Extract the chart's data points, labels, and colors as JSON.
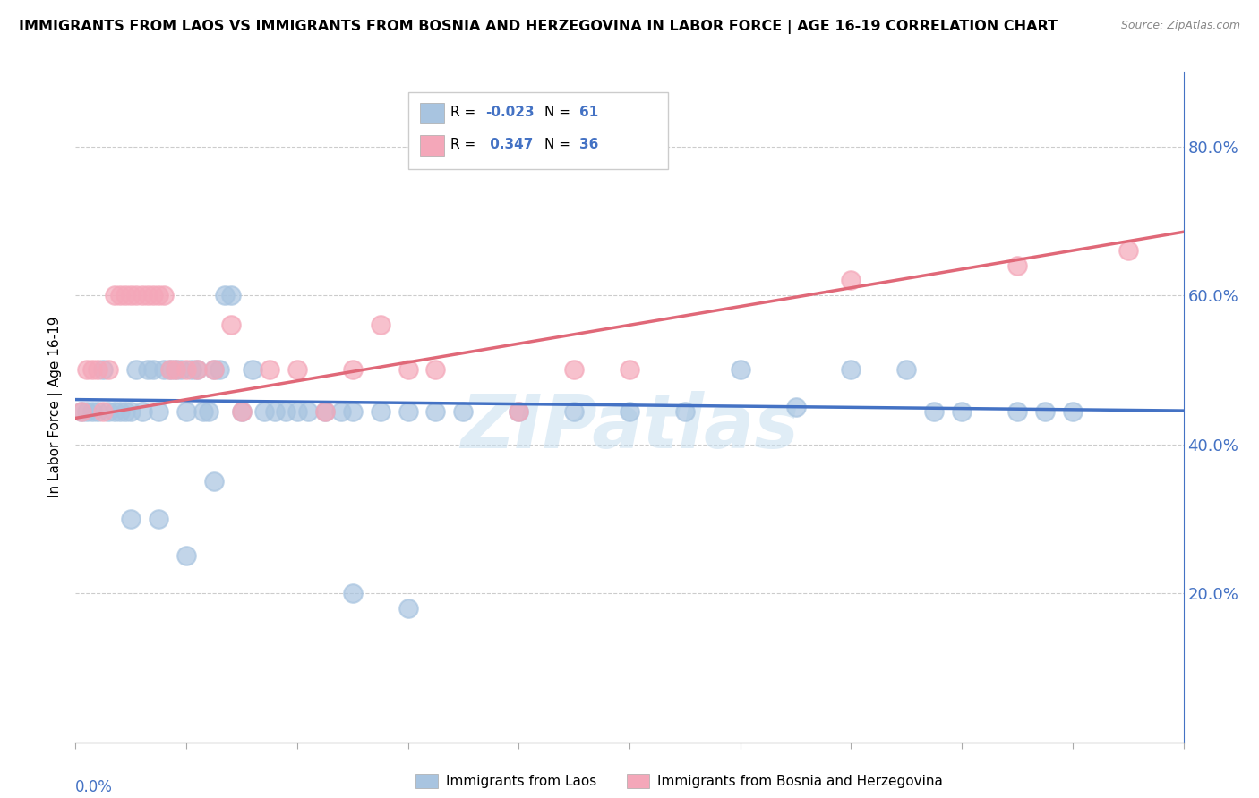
{
  "title": "IMMIGRANTS FROM LAOS VS IMMIGRANTS FROM BOSNIA AND HERZEGOVINA IN LABOR FORCE | AGE 16-19 CORRELATION CHART",
  "source": "Source: ZipAtlas.com",
  "ylabel": "In Labor Force | Age 16-19",
  "yticks": [
    "20.0%",
    "40.0%",
    "60.0%",
    "80.0%"
  ],
  "ytick_values": [
    0.2,
    0.4,
    0.6,
    0.8
  ],
  "blue_color": "#a8c4e0",
  "pink_color": "#f4a7b9",
  "blue_line_color": "#4472c4",
  "pink_line_color": "#e06878",
  "axis_color": "#4472c4",
  "watermark_color": "#c8dff0",
  "scatter_blue": {
    "x": [
      0.001,
      0.002,
      0.003,
      0.004,
      0.005,
      0.006,
      0.007,
      0.008,
      0.009,
      0.01,
      0.011,
      0.012,
      0.013,
      0.014,
      0.015,
      0.016,
      0.017,
      0.018,
      0.019,
      0.02,
      0.021,
      0.022,
      0.023,
      0.024,
      0.025,
      0.026,
      0.027,
      0.028,
      0.03,
      0.032,
      0.034,
      0.036,
      0.038,
      0.04,
      0.042,
      0.045,
      0.048,
      0.05,
      0.055,
      0.06,
      0.065,
      0.07,
      0.08,
      0.09,
      0.1,
      0.11,
      0.12,
      0.13,
      0.14,
      0.15,
      0.155,
      0.16,
      0.17,
      0.175,
      0.18,
      0.01,
      0.015,
      0.02,
      0.025,
      0.05,
      0.06
    ],
    "y": [
      0.444,
      0.444,
      0.444,
      0.444,
      0.5,
      0.444,
      0.444,
      0.444,
      0.444,
      0.444,
      0.5,
      0.444,
      0.5,
      0.5,
      0.444,
      0.5,
      0.5,
      0.5,
      0.5,
      0.444,
      0.5,
      0.5,
      0.444,
      0.444,
      0.5,
      0.5,
      0.6,
      0.6,
      0.444,
      0.5,
      0.444,
      0.444,
      0.444,
      0.444,
      0.444,
      0.444,
      0.444,
      0.444,
      0.444,
      0.444,
      0.444,
      0.444,
      0.444,
      0.444,
      0.444,
      0.444,
      0.5,
      0.45,
      0.5,
      0.5,
      0.444,
      0.444,
      0.444,
      0.444,
      0.444,
      0.3,
      0.3,
      0.25,
      0.35,
      0.2,
      0.18
    ]
  },
  "scatter_pink": {
    "x": [
      0.001,
      0.002,
      0.003,
      0.004,
      0.005,
      0.006,
      0.007,
      0.008,
      0.009,
      0.01,
      0.011,
      0.012,
      0.013,
      0.014,
      0.015,
      0.016,
      0.017,
      0.018,
      0.02,
      0.022,
      0.025,
      0.028,
      0.03,
      0.035,
      0.04,
      0.045,
      0.05,
      0.055,
      0.06,
      0.065,
      0.08,
      0.09,
      0.1,
      0.14,
      0.17,
      0.19
    ],
    "y": [
      0.444,
      0.5,
      0.5,
      0.5,
      0.444,
      0.5,
      0.6,
      0.6,
      0.6,
      0.6,
      0.6,
      0.6,
      0.6,
      0.6,
      0.6,
      0.6,
      0.5,
      0.5,
      0.5,
      0.5,
      0.5,
      0.56,
      0.444,
      0.5,
      0.5,
      0.444,
      0.5,
      0.56,
      0.5,
      0.5,
      0.444,
      0.5,
      0.5,
      0.62,
      0.64,
      0.66
    ]
  },
  "blue_line": {
    "x0": 0.0,
    "x1": 0.2,
    "y0": 0.46,
    "y1": 0.445
  },
  "pink_line": {
    "x0": 0.0,
    "x1": 0.2,
    "y0": 0.435,
    "y1": 0.685
  },
  "xmin": 0.0,
  "xmax": 0.2,
  "ymin": 0.0,
  "ymax": 0.9,
  "legend_blue_r": "R = -0.023",
  "legend_blue_n": "N = 61",
  "legend_pink_r": "R =  0.347",
  "legend_pink_n": "N = 36",
  "bottom_legend_blue": "Immigrants from Laos",
  "bottom_legend_pink": "Immigrants from Bosnia and Herzegovina"
}
